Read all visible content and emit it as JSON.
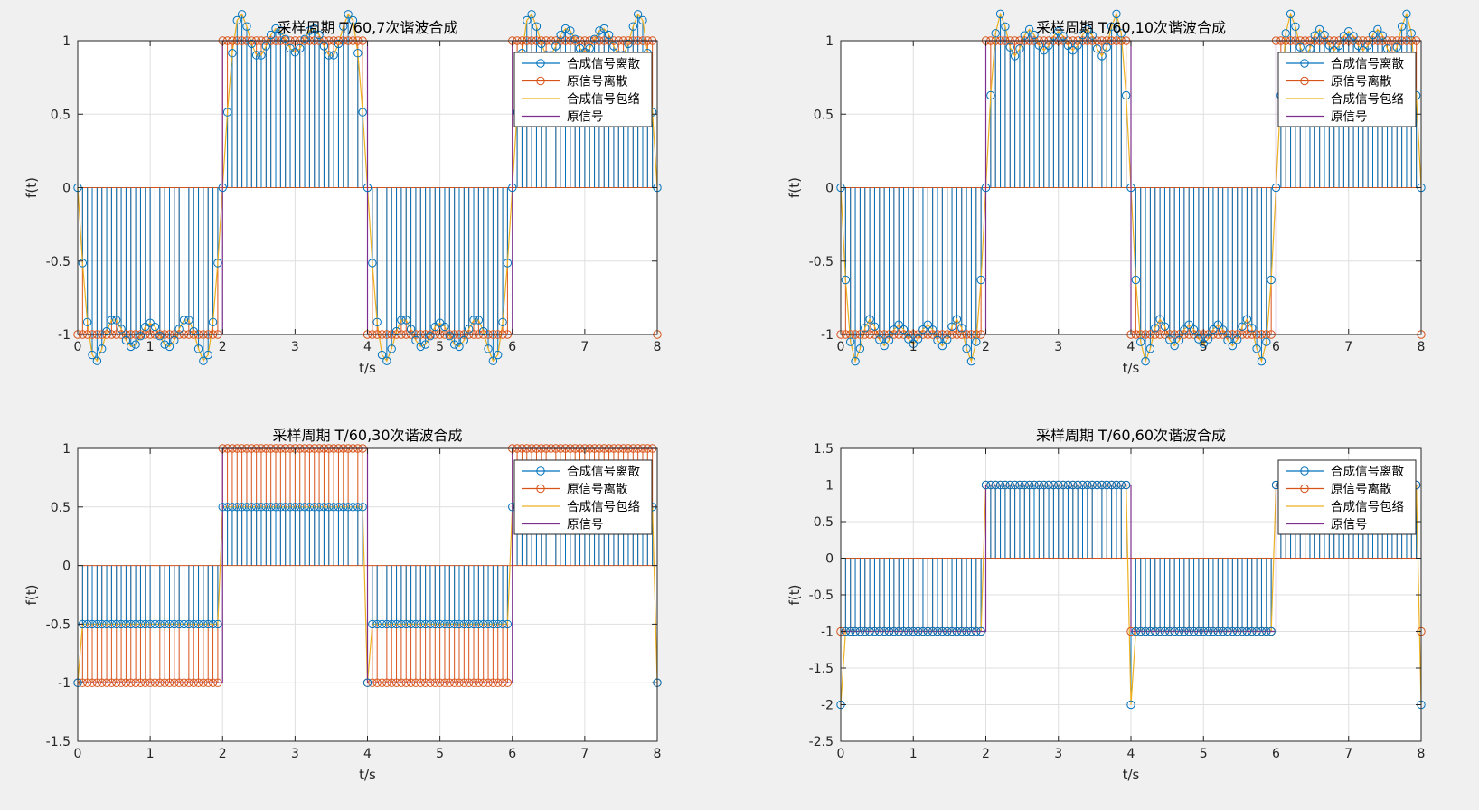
{
  "window": {
    "background": "#f0f0f0"
  },
  "colors": {
    "composite": "#0072bd",
    "original_discrete": "#d95319",
    "envelope": "#edb120",
    "original": "#7e2f8e",
    "axes": "#262626",
    "grid": "#dfdfdf"
  },
  "legend_labels": [
    "合成信号离散",
    "原信号离散",
    "合成信号包络",
    "原信号"
  ],
  "chart_data": [
    {
      "type": "line",
      "title": "采样周期 T/60,7次谐波合成",
      "xlabel": "t/s",
      "ylabel": "f(t)",
      "xlim": [
        0,
        8
      ],
      "ylim": [
        -1,
        1
      ],
      "xticks": [
        "0",
        "1",
        "2",
        "3",
        "4",
        "5",
        "6",
        "7",
        "8"
      ],
      "yticks": [
        "1",
        "0.5",
        "0",
        "-0.5",
        "-1"
      ],
      "grid": true,
      "legend": "top-right",
      "harmonics": 7,
      "sample_step": "T/60",
      "series": [
        {
          "name": "合成信号离散",
          "style": "stem-circle"
        },
        {
          "name": "原信号离散",
          "style": "stem-circle"
        },
        {
          "name": "合成信号包络",
          "style": "line"
        },
        {
          "name": "原信号",
          "style": "line"
        }
      ]
    },
    {
      "type": "line",
      "title": "采样周期 T/60,10次谐波合成",
      "xlabel": "t/s",
      "ylabel": "f(t)",
      "xlim": [
        0,
        8
      ],
      "ylim": [
        -1,
        1
      ],
      "xticks": [
        "0",
        "1",
        "2",
        "3",
        "4",
        "5",
        "6",
        "7",
        "8"
      ],
      "yticks": [
        "1",
        "0.5",
        "0",
        "-0.5",
        "-1"
      ],
      "grid": true,
      "legend": "top-right",
      "harmonics": 10,
      "sample_step": "T/60",
      "series": [
        {
          "name": "合成信号离散",
          "style": "stem-circle"
        },
        {
          "name": "原信号离散",
          "style": "stem-circle"
        },
        {
          "name": "合成信号包络",
          "style": "line"
        },
        {
          "name": "原信号",
          "style": "line"
        }
      ]
    },
    {
      "type": "line",
      "title": "采样周期 T/60,30次谐波合成",
      "xlabel": "t/s",
      "ylabel": "f(t)",
      "xlim": [
        0,
        8
      ],
      "ylim": [
        -1.5,
        1
      ],
      "xticks": [
        "0",
        "1",
        "2",
        "3",
        "4",
        "5",
        "6",
        "7",
        "8"
      ],
      "yticks": [
        "1",
        "0.5",
        "0",
        "-0.5",
        "-1",
        "-1.5"
      ],
      "grid": true,
      "legend": "top-right",
      "harmonics": 30,
      "sample_step": "T/60",
      "series": [
        {
          "name": "合成信号离散",
          "style": "stem-circle"
        },
        {
          "name": "原信号离散",
          "style": "stem-circle"
        },
        {
          "name": "合成信号包络",
          "style": "line"
        },
        {
          "name": "原信号",
          "style": "line"
        }
      ]
    },
    {
      "type": "line",
      "title": "采样周期 T/60,60次谐波合成",
      "xlabel": "t/s",
      "ylabel": "f(t)",
      "xlim": [
        0,
        8
      ],
      "ylim": [
        -2.5,
        1.5
      ],
      "xticks": [
        "0",
        "1",
        "2",
        "3",
        "4",
        "5",
        "6",
        "7",
        "8"
      ],
      "yticks": [
        "1.5",
        "1",
        "0.5",
        "0",
        "-0.5",
        "-1",
        "-1.5",
        "-2",
        "-2.5"
      ],
      "grid": true,
      "legend": "top-right",
      "harmonics": 60,
      "sample_step": "T/60",
      "series": [
        {
          "name": "合成信号离散",
          "style": "stem-circle"
        },
        {
          "name": "原信号离散",
          "style": "stem-circle"
        },
        {
          "name": "合成信号包络",
          "style": "line"
        },
        {
          "name": "原信号",
          "style": "line"
        }
      ]
    }
  ]
}
